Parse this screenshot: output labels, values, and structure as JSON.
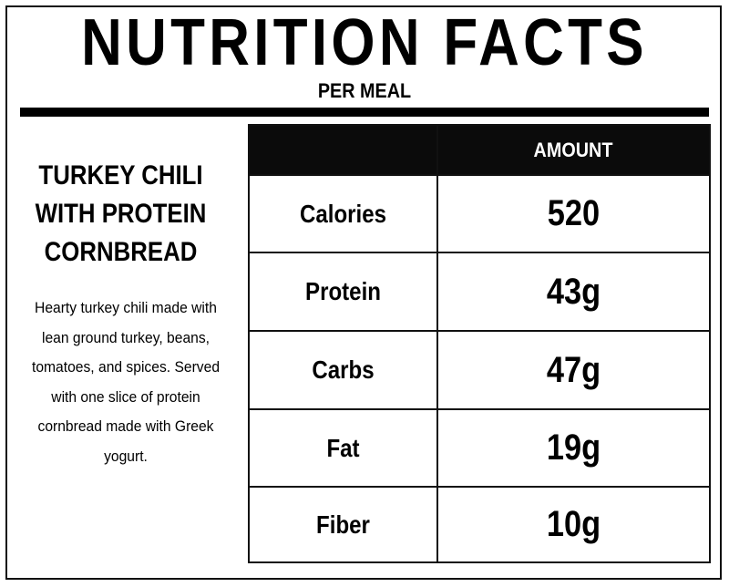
{
  "header": {
    "title": "NUTRITION FACTS",
    "subtitle": "PER MEAL"
  },
  "meal": {
    "name": "TURKEY CHILI WITH PROTEIN CORNBREAD",
    "description": "Hearty turkey chili made with lean ground turkey, beans, tomatoes, and spices. Served with one slice of protein cornbread made with Greek yogurt."
  },
  "table": {
    "column_header": "AMOUNT",
    "rows": [
      {
        "label": "Calories",
        "value": "520"
      },
      {
        "label": "Protein",
        "value": "43g"
      },
      {
        "label": "Carbs",
        "value": "47g"
      },
      {
        "label": "Fat",
        "value": "19g"
      },
      {
        "label": "Fiber",
        "value": "10g"
      }
    ]
  },
  "colors": {
    "header_background": "#0b0b0b",
    "header_text": "#ffffff",
    "text": "#000000",
    "background": "#ffffff"
  }
}
